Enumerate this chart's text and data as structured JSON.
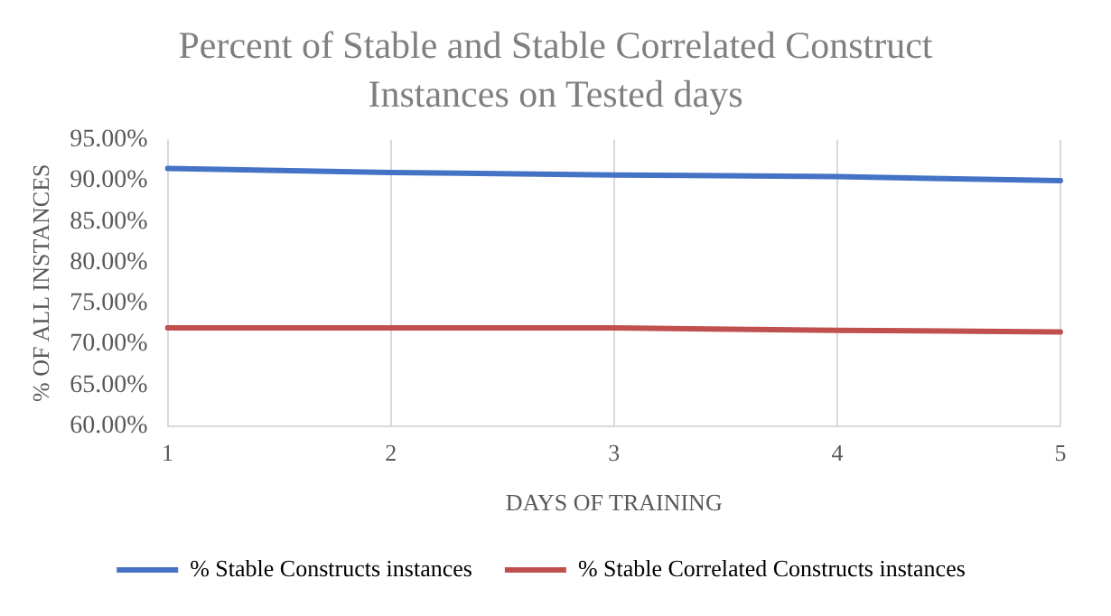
{
  "chart_data": {
    "type": "line",
    "title": "Percent of Stable and Stable Correlated Construct Instances on Tested days",
    "xlabel": "DAYS OF TRAINING",
    "ylabel": "% OF ALL INSTANCES",
    "categories": [
      "1",
      "2",
      "3",
      "4",
      "5"
    ],
    "series": [
      {
        "name": "% Stable Constructs instances",
        "color": "#4472c4",
        "values": [
          91.5,
          91.0,
          90.7,
          90.5,
          90.0
        ]
      },
      {
        "name": "% Stable Correlated Constructs instances",
        "color": "#c0504d",
        "values": [
          72.0,
          72.0,
          72.0,
          71.7,
          71.5
        ]
      }
    ],
    "ylim": [
      60,
      95
    ],
    "yticks": [
      {
        "value": 60,
        "label": "60.00%"
      },
      {
        "value": 65,
        "label": "65.00%"
      },
      {
        "value": 70,
        "label": "70.00%"
      },
      {
        "value": 75,
        "label": "75.00%"
      },
      {
        "value": 80,
        "label": "80.00%"
      },
      {
        "value": 85,
        "label": "85.00%"
      },
      {
        "value": 90,
        "label": "90.00%"
      },
      {
        "value": 95,
        "label": "95.00%"
      }
    ],
    "grid": "x",
    "legend": "bottom",
    "marker": "none",
    "line_style": "solid"
  }
}
